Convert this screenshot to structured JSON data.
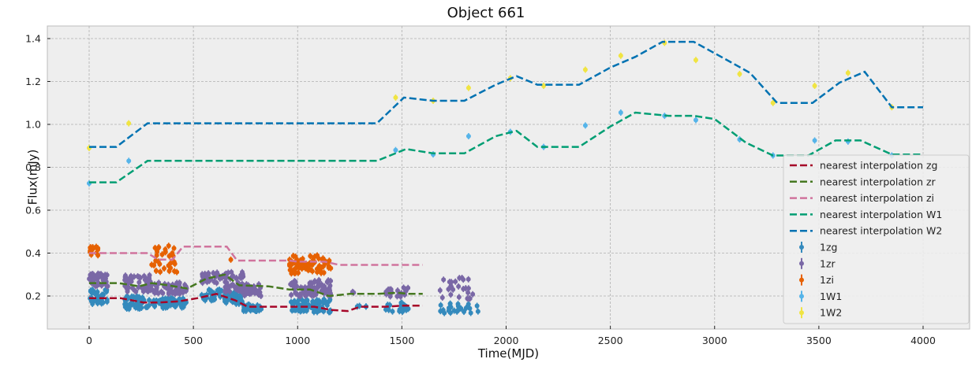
{
  "chart_data": {
    "type": "line",
    "title": "Object 661",
    "xlabel": "Time(MJD)",
    "ylabel": "Flux(mJy)",
    "xlim": [
      -200,
      4200
    ],
    "ylim": [
      0.05,
      1.46
    ],
    "xticks": [
      0,
      500,
      1000,
      1500,
      2000,
      2500,
      3000,
      3500,
      4000
    ],
    "yticks": [
      0.2,
      0.4,
      0.6,
      0.8,
      1.0,
      1.2,
      1.4
    ],
    "grid": true,
    "legend_position": "lower right",
    "series": [
      {
        "name": "nearest interpolation zg",
        "kind": "dashed-line",
        "color": "#a60628",
        "x": [
          0,
          150,
          260,
          340,
          430,
          520,
          610,
          700,
          760,
          900,
          1000,
          1080,
          1160,
          1240,
          1300,
          1420,
          1500,
          1600
        ],
        "y": [
          0.19,
          0.19,
          0.17,
          0.17,
          0.175,
          0.19,
          0.21,
          0.18,
          0.15,
          0.15,
          0.15,
          0.15,
          0.135,
          0.13,
          0.15,
          0.15,
          0.155,
          0.155
        ]
      },
      {
        "name": "nearest interpolation zr",
        "kind": "dashed-line",
        "color": "#467821",
        "x": [
          0,
          140,
          240,
          300,
          380,
          470,
          560,
          650,
          720,
          860,
          960,
          1060,
          1150,
          1250,
          1380,
          1480,
          1530,
          1600
        ],
        "y": [
          0.26,
          0.26,
          0.245,
          0.26,
          0.25,
          0.235,
          0.28,
          0.3,
          0.25,
          0.245,
          0.23,
          0.23,
          0.2,
          0.21,
          0.21,
          0.215,
          0.21,
          0.21
        ]
      },
      {
        "name": "nearest interpolation zi",
        "kind": "dashed-line",
        "color": "#d0749d",
        "x": [
          0,
          280,
          330,
          400,
          450,
          660,
          710,
          960,
          1000,
          1130,
          1200,
          1600
        ],
        "y": [
          0.4,
          0.4,
          0.37,
          0.37,
          0.43,
          0.43,
          0.365,
          0.365,
          0.36,
          0.36,
          0.345,
          0.345
        ]
      },
      {
        "name": "nearest interpolation W1",
        "kind": "dashed-line",
        "color": "#009e73",
        "x": [
          0,
          130,
          280,
          1380,
          1520,
          1650,
          1800,
          1950,
          2050,
          2150,
          2350,
          2500,
          2620,
          2780,
          2900,
          3000,
          3150,
          3280,
          3450,
          3580,
          3700,
          3850,
          4000
        ],
        "y": [
          0.73,
          0.73,
          0.83,
          0.83,
          0.885,
          0.865,
          0.865,
          0.945,
          0.97,
          0.895,
          0.895,
          0.99,
          1.055,
          1.04,
          1.04,
          1.025,
          0.915,
          0.855,
          0.855,
          0.925,
          0.925,
          0.86,
          0.86
        ]
      },
      {
        "name": "nearest interpolation W2",
        "kind": "dashed-line",
        "color": "#0072b2",
        "x": [
          0,
          130,
          280,
          1380,
          1510,
          1650,
          1800,
          1950,
          2050,
          2150,
          2350,
          2500,
          2620,
          2750,
          2900,
          3050,
          3170,
          3300,
          3470,
          3600,
          3720,
          3850,
          4000
        ],
        "y": [
          0.895,
          0.895,
          1.005,
          1.005,
          1.125,
          1.11,
          1.11,
          1.185,
          1.225,
          1.185,
          1.185,
          1.265,
          1.315,
          1.385,
          1.385,
          1.305,
          1.24,
          1.1,
          1.1,
          1.195,
          1.245,
          1.08,
          1.08
        ]
      },
      {
        "name": "1zg",
        "kind": "errorbar-points",
        "color": "#348abd",
        "clusters": [
          {
            "x0": 0,
            "x1": 90,
            "ymin": 0.16,
            "ymax": 0.23,
            "n": 40
          },
          {
            "x0": 170,
            "x1": 300,
            "ymin": 0.14,
            "ymax": 0.2,
            "n": 45
          },
          {
            "x0": 300,
            "x1": 470,
            "ymin": 0.145,
            "ymax": 0.19,
            "n": 55
          },
          {
            "x0": 540,
            "x1": 640,
            "ymin": 0.18,
            "ymax": 0.23,
            "n": 30
          },
          {
            "x0": 650,
            "x1": 740,
            "ymin": 0.16,
            "ymax": 0.22,
            "n": 45
          },
          {
            "x0": 740,
            "x1": 830,
            "ymin": 0.13,
            "ymax": 0.16,
            "n": 30
          },
          {
            "x0": 960,
            "x1": 1160,
            "ymin": 0.125,
            "ymax": 0.185,
            "n": 80
          },
          {
            "x0": 1280,
            "x1": 1340,
            "ymin": 0.14,
            "ymax": 0.155,
            "n": 4
          },
          {
            "x0": 1420,
            "x1": 1540,
            "ymin": 0.12,
            "ymax": 0.17,
            "n": 20
          },
          {
            "x0": 1680,
            "x1": 1870,
            "ymin": 0.12,
            "ymax": 0.165,
            "n": 25
          }
        ]
      },
      {
        "name": "1zr",
        "kind": "errorbar-points",
        "color": "#7a68a6",
        "clusters": [
          {
            "x0": 0,
            "x1": 90,
            "ymin": 0.245,
            "ymax": 0.305,
            "n": 45
          },
          {
            "x0": 170,
            "x1": 300,
            "ymin": 0.22,
            "ymax": 0.3,
            "n": 50
          },
          {
            "x0": 300,
            "x1": 470,
            "ymin": 0.21,
            "ymax": 0.265,
            "n": 60
          },
          {
            "x0": 540,
            "x1": 640,
            "ymin": 0.26,
            "ymax": 0.31,
            "n": 30
          },
          {
            "x0": 650,
            "x1": 740,
            "ymin": 0.22,
            "ymax": 0.315,
            "n": 45
          },
          {
            "x0": 740,
            "x1": 830,
            "ymin": 0.2,
            "ymax": 0.255,
            "n": 30
          },
          {
            "x0": 960,
            "x1": 1160,
            "ymin": 0.2,
            "ymax": 0.275,
            "n": 80
          },
          {
            "x0": 1230,
            "x1": 1280,
            "ymin": 0.215,
            "ymax": 0.22,
            "n": 2
          },
          {
            "x0": 1420,
            "x1": 1540,
            "ymin": 0.195,
            "ymax": 0.24,
            "n": 20
          },
          {
            "x0": 1680,
            "x1": 1840,
            "ymin": 0.185,
            "ymax": 0.29,
            "n": 25
          }
        ]
      },
      {
        "name": "1zi",
        "kind": "errorbar-points",
        "color": "#e66101",
        "clusters": [
          {
            "x0": 0,
            "x1": 45,
            "ymin": 0.39,
            "ymax": 0.43,
            "n": 15
          },
          {
            "x0": 300,
            "x1": 430,
            "ymin": 0.305,
            "ymax": 0.435,
            "n": 30
          },
          {
            "x0": 670,
            "x1": 680,
            "ymin": 0.365,
            "ymax": 0.37,
            "n": 1
          },
          {
            "x0": 960,
            "x1": 1160,
            "ymin": 0.305,
            "ymax": 0.39,
            "n": 70
          }
        ]
      },
      {
        "name": "1W1",
        "kind": "errorbar-points",
        "color": "#56b4e9",
        "x": [
          0,
          190,
          1470,
          1650,
          1820,
          2020,
          2180,
          2380,
          2550,
          2760,
          2910,
          3120,
          3280,
          3480,
          3640,
          3850
        ],
        "y": [
          0.725,
          0.83,
          0.88,
          0.86,
          0.945,
          0.965,
          0.895,
          0.995,
          1.055,
          1.04,
          1.02,
          0.93,
          0.855,
          0.925,
          0.92,
          0.855
        ]
      },
      {
        "name": "1W2",
        "kind": "errorbar-points",
        "color": "#f0e442",
        "x": [
          0,
          190,
          1470,
          1650,
          1820,
          2020,
          2180,
          2380,
          2550,
          2760,
          2910,
          3120,
          3280,
          3480,
          3640,
          3850
        ],
        "y": [
          0.89,
          1.005,
          1.125,
          1.11,
          1.17,
          1.215,
          1.18,
          1.255,
          1.32,
          1.38,
          1.3,
          1.235,
          1.1,
          1.18,
          1.24,
          1.08
        ]
      }
    ]
  }
}
